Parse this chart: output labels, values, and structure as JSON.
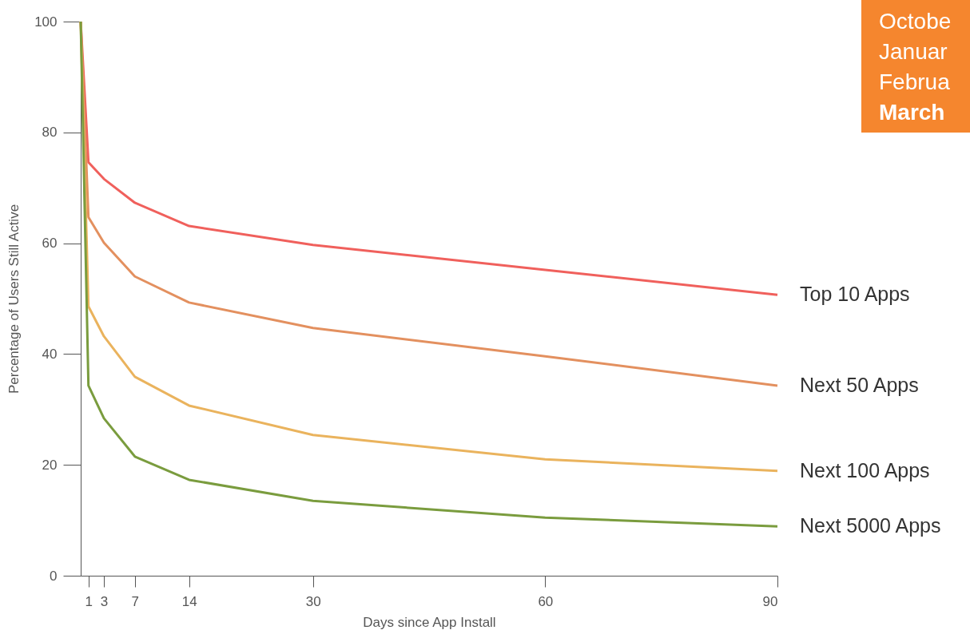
{
  "chart_data": {
    "type": "line",
    "xlabel": "Days since App Install",
    "ylabel": "Percentage of Users Still Active",
    "xlim": [
      0,
      90
    ],
    "ylim": [
      0,
      100
    ],
    "xticks": [
      1,
      3,
      7,
      14,
      30,
      60,
      90
    ],
    "yticks": [
      0,
      20,
      40,
      60,
      80,
      100
    ],
    "grid": false,
    "x": [
      0,
      1,
      3,
      7,
      14,
      30,
      60,
      90
    ],
    "series": [
      {
        "name": "Top 10 Apps",
        "color": "#f0605c",
        "values": [
          100,
          74.6,
          71.6,
          67.3,
          63.1,
          59.7,
          55.2,
          50.7
        ]
      },
      {
        "name": "Next 50 Apps",
        "color": "#e3905f",
        "values": [
          100,
          64.7,
          60.1,
          54.0,
          49.3,
          44.7,
          39.6,
          34.3
        ]
      },
      {
        "name": "Next 100 Apps",
        "color": "#eab35d",
        "values": [
          100,
          48.6,
          43.2,
          35.9,
          30.7,
          25.4,
          21.0,
          18.9
        ]
      },
      {
        "name": "Next 5000 Apps",
        "color": "#7a9c3e",
        "values": [
          100,
          34.3,
          28.4,
          21.5,
          17.3,
          13.5,
          10.5,
          8.9
        ]
      }
    ],
    "annotations": [
      "Octobe",
      "Januar",
      "Februa",
      "March"
    ]
  }
}
